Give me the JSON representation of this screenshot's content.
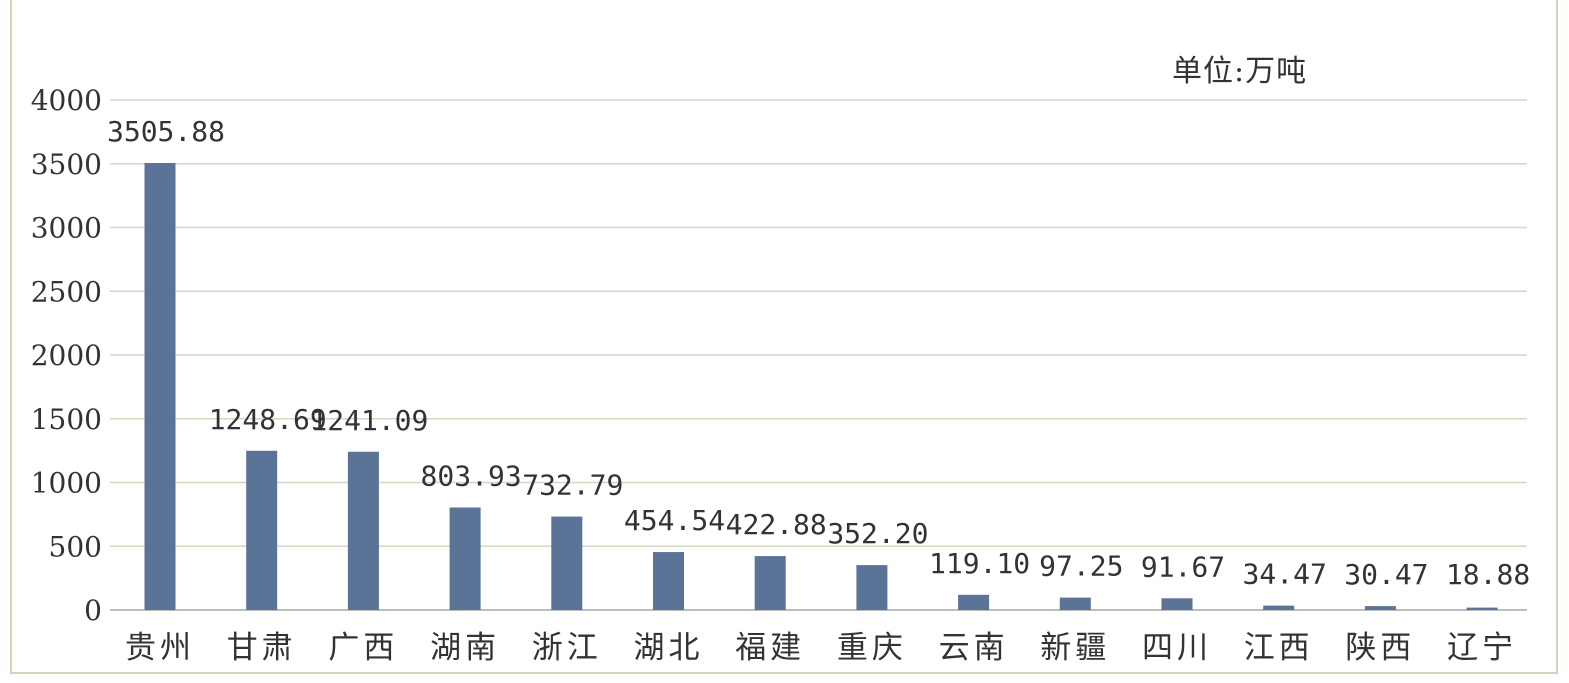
{
  "chart_data": {
    "type": "bar",
    "unit_label": "单位:万吨",
    "categories": [
      "贵州",
      "甘肃",
      "广西",
      "湖南",
      "浙江",
      "湖北",
      "福建",
      "重庆",
      "云南",
      "新疆",
      "四川",
      "江西",
      "陕西",
      "辽宁"
    ],
    "values": [
      3505.88,
      1248.69,
      1241.09,
      803.93,
      732.79,
      454.54,
      422.88,
      352.2,
      119.1,
      97.25,
      91.67,
      34.47,
      30.47,
      18.88
    ],
    "value_labels": [
      "3505.88",
      "1248.69",
      "1241.09",
      "803.93",
      "732.79",
      "454.54",
      "422.88",
      "352.20",
      "119.10",
      "97.25",
      "91.67",
      "34.47",
      "30.47",
      "18.88"
    ],
    "y_ticks": [
      "0",
      "500",
      "1000",
      "1500",
      "2000",
      "2500",
      "3000",
      "3500",
      "4000"
    ],
    "ylim": [
      0,
      4000
    ],
    "grid": true,
    "colors": {
      "bar": "#5b7396",
      "grid": "#d6d6c4",
      "text": "#333333"
    }
  }
}
